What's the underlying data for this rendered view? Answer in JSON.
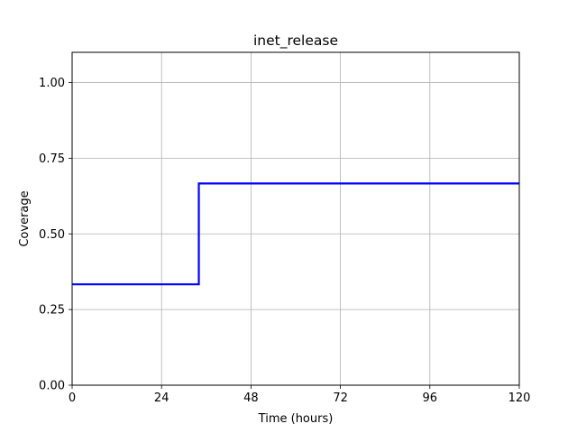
{
  "chart_data": {
    "type": "line",
    "title": "inet_release",
    "xlabel": "Time (hours)",
    "ylabel": "Coverage",
    "xlim": [
      0,
      120
    ],
    "ylim": [
      0,
      1.1
    ],
    "x_ticks": [
      0,
      24,
      48,
      72,
      96,
      120
    ],
    "x_tick_labels": [
      "0",
      "24",
      "48",
      "72",
      "96",
      "120"
    ],
    "y_ticks": [
      0,
      0.25,
      0.5,
      0.75,
      1.0
    ],
    "y_tick_labels": [
      "0.00",
      "0.25",
      "0.50",
      "0.75",
      "1.00"
    ],
    "grid": true,
    "step": "post",
    "series": [
      {
        "color": "#0000ff",
        "x": [
          0,
          34,
          120
        ],
        "y": [
          0.3333,
          0.6667,
          0.6667
        ]
      }
    ]
  }
}
